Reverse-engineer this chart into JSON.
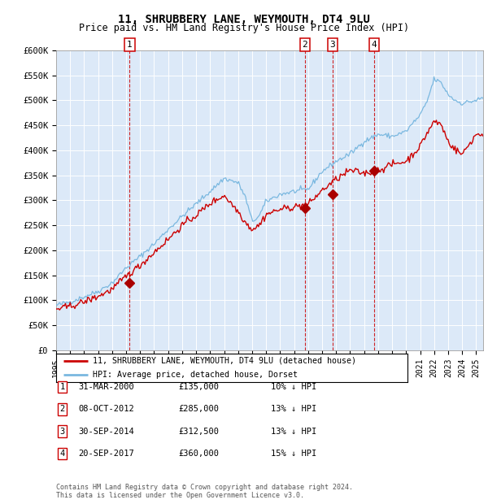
{
  "title": "11, SHRUBBERY LANE, WEYMOUTH, DT4 9LU",
  "subtitle": "Price paid vs. HM Land Registry's House Price Index (HPI)",
  "ylim": [
    0,
    600000
  ],
  "yticks": [
    0,
    50000,
    100000,
    150000,
    200000,
    250000,
    300000,
    350000,
    400000,
    450000,
    500000,
    550000,
    600000
  ],
  "ytick_labels": [
    "£0",
    "£50K",
    "£100K",
    "£150K",
    "£200K",
    "£250K",
    "£300K",
    "£350K",
    "£400K",
    "£450K",
    "£500K",
    "£550K",
    "£600K"
  ],
  "xlim_start": 1995.0,
  "xlim_end": 2025.5,
  "plot_bg_color": "#dce9f8",
  "hpi_color": "#7ab8e0",
  "price_color": "#cc0000",
  "marker_color": "#aa0000",
  "vline_color": "#cc0000",
  "box_color": "#cc0000",
  "title_fontsize": 10,
  "subtitle_fontsize": 8.5,
  "transactions": [
    {
      "date": 2000.25,
      "price": 135000,
      "label": "1"
    },
    {
      "date": 2012.77,
      "price": 285000,
      "label": "2"
    },
    {
      "date": 2014.75,
      "price": 312500,
      "label": "3"
    },
    {
      "date": 2017.72,
      "price": 360000,
      "label": "4"
    }
  ],
  "table_rows": [
    {
      "num": "1",
      "date": "31-MAR-2000",
      "price": "£135,000",
      "hpi": "10% ↓ HPI"
    },
    {
      "num": "2",
      "date": "08-OCT-2012",
      "price": "£285,000",
      "hpi": "13% ↓ HPI"
    },
    {
      "num": "3",
      "date": "30-SEP-2014",
      "price": "£312,500",
      "hpi": "13% ↓ HPI"
    },
    {
      "num": "4",
      "date": "20-SEP-2017",
      "price": "£360,000",
      "hpi": "15% ↓ HPI"
    }
  ],
  "legend_label_red": "11, SHRUBBERY LANE, WEYMOUTH, DT4 9LU (detached house)",
  "legend_label_blue": "HPI: Average price, detached house, Dorset",
  "footer_line1": "Contains HM Land Registry data © Crown copyright and database right 2024.",
  "footer_line2": "This data is licensed under the Open Government Licence v3.0."
}
